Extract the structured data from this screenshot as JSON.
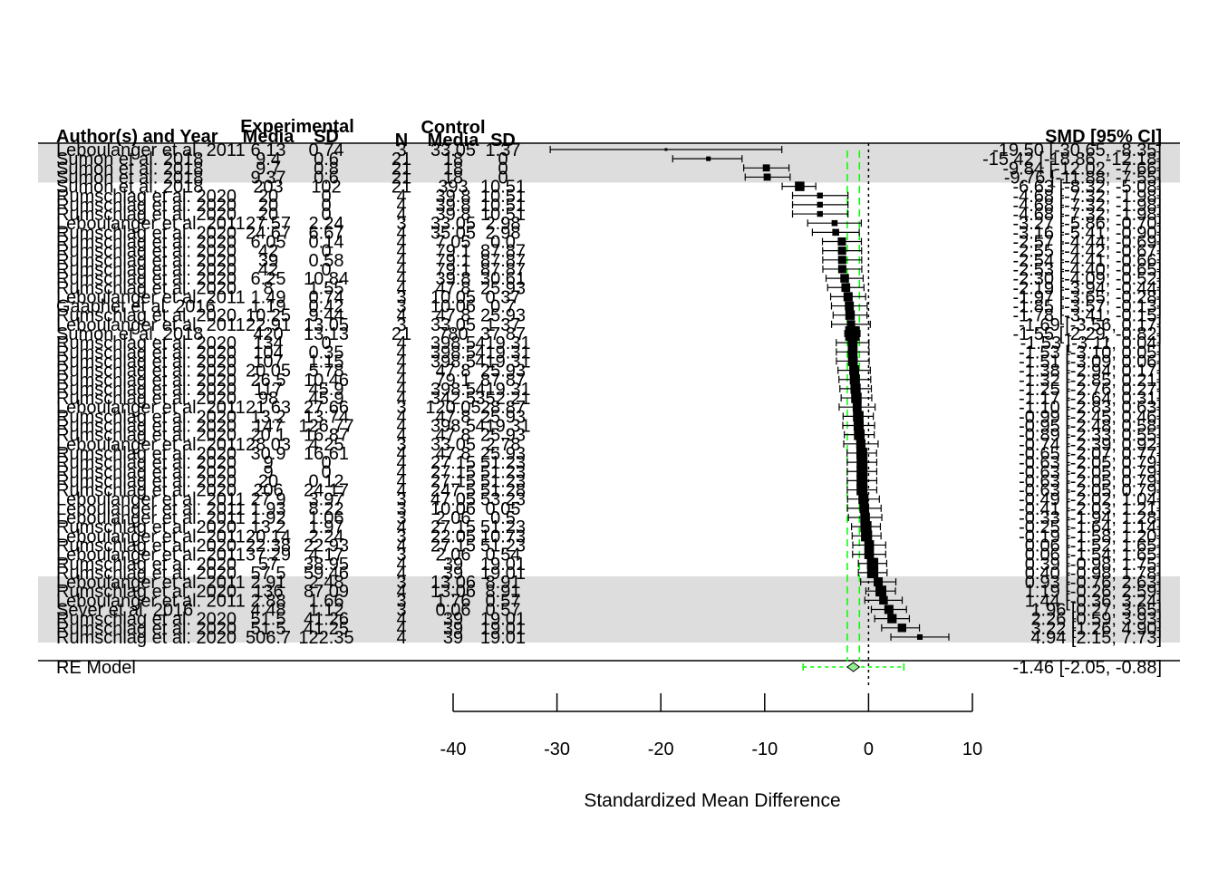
{
  "chart_data": {
    "type": "forest",
    "xlabel": "Standardized Mean Difference",
    "xlim": [
      -40,
      10
    ],
    "x_ticks": [
      -40,
      -30,
      -20,
      -10,
      0,
      10
    ],
    "x_tick_labels": [
      "-40",
      "-30",
      "-20",
      "-10",
      "0",
      "10"
    ],
    "headers": {
      "study": "Author(s) and Year",
      "group_experimental": "Experimental",
      "group_control": "Control",
      "exp_mean": "Media",
      "exp_sd": "SD",
      "n": "N",
      "ctrl_mean": "Media",
      "ctrl_sd": "SD",
      "effect": "SMD [95% CI]"
    },
    "studies": [
      {
        "label": "Leboulanger et al. 2011",
        "exp_mean": "6.13",
        "exp_sd": "0.74",
        "n": "3",
        "ctrl_mean": "33.05",
        "ctrl_sd": "1.37",
        "smd": -19.5,
        "ci_lower": -30.65,
        "ci_upper": -8.35,
        "effect_text": "-19.50 [-30.65,  -8.35]"
      },
      {
        "label": "Sumon et al. 2018",
        "exp_mean": "9.4",
        "exp_sd": "0.6",
        "n": "21",
        "ctrl_mean": "18",
        "ctrl_sd": "0",
        "smd": -15.42,
        "ci_lower": -18.86,
        "ci_upper": -12.18,
        "effect_text": "-15.42 [-18.86, -12.18]"
      },
      {
        "label": "Sumon et al. 2018",
        "exp_mean": "9.7",
        "exp_sd": "0.8",
        "n": "21",
        "ctrl_mean": "18",
        "ctrl_sd": "0",
        "smd": -9.84,
        "ci_lower": -12.02,
        "ci_upper": -7.66,
        "effect_text": "-9.84 [-12.02,  -7.66]"
      },
      {
        "label": "Sumon et al. 2018",
        "exp_mean": "9.37",
        "exp_sd": "0.6",
        "n": "21",
        "ctrl_mean": "18",
        "ctrl_sd": "0",
        "smd": -9.76,
        "ci_lower": -11.88,
        "ci_upper": -7.55,
        "effect_text": "-9.76 [-11.88,  -7.55]"
      },
      {
        "label": "Sumon et al. 2018",
        "exp_mean": "203",
        "exp_sd": "102",
        "n": "21",
        "ctrl_mean": "393",
        "ctrl_sd": "10.51",
        "smd": -6.63,
        "ci_lower": -8.32,
        "ci_upper": -5.08,
        "effect_text": "-6.63 [-8.32,  -5.08]"
      },
      {
        "label": "Rumschlag et al. 2020",
        "exp_mean": "20",
        "exp_sd": "0",
        "n": "4",
        "ctrl_mean": "39.8",
        "ctrl_sd": "10.51",
        "smd": -4.68,
        "ci_lower": -7.32,
        "ci_upper": -1.98,
        "effect_text": "-4.68 [-7.32,  -1.98]"
      },
      {
        "label": "Rumschlag et al. 2020",
        "exp_mean": "20",
        "exp_sd": "0",
        "n": "4",
        "ctrl_mean": "39.8",
        "ctrl_sd": "10.51",
        "smd": -4.68,
        "ci_lower": -7.32,
        "ci_upper": -1.98,
        "effect_text": "-4.68 [-7.32,  -1.98]"
      },
      {
        "label": "Rumschlag et al. 2020",
        "exp_mean": "20",
        "exp_sd": "0",
        "n": "4",
        "ctrl_mean": "39.8",
        "ctrl_sd": "10.51",
        "smd": -4.68,
        "ci_lower": -7.32,
        "ci_upper": -1.98,
        "effect_text": "-4.68 [-7.32,  -1.98]"
      },
      {
        "label": "Leboulanger et al. 2011",
        "exp_mean": "27.57",
        "exp_sd": "2.24",
        "n": "3",
        "ctrl_mean": "33.05",
        "ctrl_sd": "2.98",
        "smd": -3.27,
        "ci_lower": -5.86,
        "ci_upper": -0.7,
        "effect_text": "-3.27 [-5.86,  -0.70]"
      },
      {
        "label": "Rumschlag et al. 2020",
        "exp_mean": "24.67",
        "exp_sd": "6.67",
        "n": "4",
        "ctrl_mean": "35.05",
        "ctrl_sd": "2.98",
        "smd": -3.16,
        "ci_lower": -5.41,
        "ci_upper": -0.9,
        "effect_text": "-3.16 [-5.41,  -0.90]"
      },
      {
        "label": "Rumschlag et al. 2020",
        "exp_mean": "6.05",
        "exp_sd": "0.14",
        "n": "4",
        "ctrl_mean": "7.05",
        "ctrl_sd": "0.0",
        "smd": -2.57,
        "ci_lower": -4.44,
        "ci_upper": -0.69,
        "effect_text": "-2.57 [-4.44,  -0.69]"
      },
      {
        "label": "Rumschlag et al. 2020",
        "exp_mean": "42",
        "exp_sd": "0",
        "n": "4",
        "ctrl_mean": "79.1",
        "ctrl_sd": "87.87",
        "smd": -2.55,
        "ci_lower": -4.42,
        "ci_upper": -0.67,
        "effect_text": "-2.55 [-4.42,  -0.67]"
      },
      {
        "label": "Rumschlag et al. 2020",
        "exp_mean": "39",
        "exp_sd": "0.58",
        "n": "4",
        "ctrl_mean": "79.1",
        "ctrl_sd": "87.87",
        "smd": -2.54,
        "ci_lower": -4.41,
        "ci_upper": -0.66,
        "effect_text": "-2.54 [-4.41,  -0.66]"
      },
      {
        "label": "Rumschlag et al. 2020",
        "exp_mean": "42",
        "exp_sd": "0",
        "n": "4",
        "ctrl_mean": "79.1",
        "ctrl_sd": "87.87",
        "smd": -2.53,
        "ci_lower": -4.4,
        "ci_upper": -0.65,
        "effect_text": "-2.53 [-4.40,  -0.65]"
      },
      {
        "label": "Rumschlag et al. 2020",
        "exp_mean": "6.25",
        "exp_sd": "10.84",
        "n": "4",
        "ctrl_mean": "39.8",
        "ctrl_sd": "30.61",
        "smd": -2.3,
        "ci_lower": -4.09,
        "ci_upper": -0.52,
        "effect_text": "-2.30 [-4.09,  -0.52]"
      },
      {
        "label": "Rumschlag et al. 2020",
        "exp_mean": "8",
        "exp_sd": "1.55",
        "n": "4",
        "ctrl_mean": "47.8",
        "ctrl_sd": "25.93",
        "smd": -2.19,
        "ci_lower": -3.94,
        "ci_upper": -0.44,
        "effect_text": "-2.19 [-3.94,  -0.44]"
      },
      {
        "label": "Leboulanger et al. 2011",
        "exp_mean": "1.49",
        "exp_sd": "0.74",
        "n": "3",
        "ctrl_mean": "10.05",
        "ctrl_sd": "0.37",
        "smd": -1.97,
        "ci_lower": -3.65,
        "ci_upper": -0.28,
        "effect_text": "-1.97 [-3.65,  -0.28]"
      },
      {
        "label": "Gaaphet et al. 2016",
        "exp_mean": "1.19",
        "exp_sd": "0.42",
        "n": "3",
        "ctrl_mean": "10.06",
        "ctrl_sd": "0.7",
        "smd": -1.85,
        "ci_lower": -3.57,
        "ci_upper": -0.13,
        "effect_text": "-1.85 [-3.57,  -0.13]"
      },
      {
        "label": "Rumschlag et al. 2020",
        "exp_mean": "10.25",
        "exp_sd": "9.44",
        "n": "4",
        "ctrl_mean": "47.8",
        "ctrl_sd": "25.93",
        "smd": -1.78,
        "ci_lower": -3.41,
        "ci_upper": -0.15,
        "effect_text": "-1.78 [-3.41,  -0.15]"
      },
      {
        "label": "Leboulanger et al. 2011",
        "exp_mean": "22.91",
        "exp_sd": "13.05",
        "n": "3",
        "ctrl_mean": "33.05",
        "ctrl_sd": "1.37",
        "smd": -1.69,
        "ci_lower": -3.56,
        "ci_upper": 0.17,
        "effect_text": "-1.69 [-3.56,  0.17]"
      },
      {
        "label": "Sumon et al. 2018",
        "exp_mean": "420",
        "exp_sd": "13.13",
        "n": "21",
        "ctrl_mean": "780",
        "ctrl_sd": "37.87",
        "smd": -1.55,
        "ci_lower": -2.29,
        "ci_upper": -0.82,
        "effect_text": "-1.55 [-2.29,  -0.82]"
      },
      {
        "label": "Rumschlag et al. 2020",
        "exp_mean": "134",
        "exp_sd": "0",
        "n": "4",
        "ctrl_mean": "398.5",
        "ctrl_sd": "419.31",
        "smd": -1.53,
        "ci_lower": -3.11,
        "ci_upper": 0.04,
        "effect_text": "-1.53 [-3.11,  0.04]"
      },
      {
        "label": "Rumschlag et al. 2020",
        "exp_mean": "104",
        "exp_sd": "0.35",
        "n": "4",
        "ctrl_mean": "398.5",
        "ctrl_sd": "419.31",
        "smd": -1.53,
        "ci_lower": -3.1,
        "ci_upper": 0.05,
        "effect_text": "-1.53 [-3.10,  0.05]"
      },
      {
        "label": "Rumschlag et al. 2020",
        "exp_mean": "107",
        "exp_sd": "1.15",
        "n": "4",
        "ctrl_mean": "398.5",
        "ctrl_sd": "419.31",
        "smd": -1.51,
        "ci_lower": -3.09,
        "ci_upper": 0.06,
        "effect_text": "-1.51 [-3.09,  0.06]"
      },
      {
        "label": "Rumschlag et al. 2020",
        "exp_mean": "20.05",
        "exp_sd": "5.78",
        "n": "4",
        "ctrl_mean": "47.8",
        "ctrl_sd": "25.93",
        "smd": -1.38,
        "ci_lower": -2.94,
        "ci_upper": 0.17,
        "effect_text": "-1.38 [-2.94,  0.17]"
      },
      {
        "label": "Rumschlag et al. 2020",
        "exp_mean": "26.5",
        "exp_sd": "10.46",
        "n": "4",
        "ctrl_mean": "79.1",
        "ctrl_sd": "87.87",
        "smd": -1.32,
        "ci_lower": -2.85,
        "ci_upper": 0.21,
        "effect_text": "-1.32 [-2.85,  0.21]"
      },
      {
        "label": "Rumschlag et al. 2020",
        "exp_mean": "117",
        "exp_sd": "45.9",
        "n": "4",
        "ctrl_mean": "398.5",
        "ctrl_sd": "419.31",
        "smd": -1.25,
        "ci_lower": -2.76,
        "ci_upper": 0.27,
        "effect_text": "-1.25 [-2.76,  0.27]"
      },
      {
        "label": "Rumschlag et al. 2020",
        "exp_mean": "98",
        "exp_sd": "45.9",
        "n": "4",
        "ctrl_mean": "342.5",
        "ctrl_sd": "352.21",
        "smd": -1.17,
        "ci_lower": -2.64,
        "ci_upper": 0.31,
        "effect_text": "-1.17 [-2.64,  0.31]"
      },
      {
        "label": "Leboulanger et al. 2011",
        "exp_mean": "21.63",
        "exp_sd": "27.66",
        "n": "3",
        "ctrl_mean": "120.05",
        "ctrl_sd": "28.87",
        "smd": -1.1,
        "ci_lower": -2.83,
        "ci_upper": 0.63,
        "effect_text": "-1.10 [-2.83,  0.63]"
      },
      {
        "label": "Rumschlag et al. 2020",
        "exp_mean": "13.2",
        "exp_sd": "13.74",
        "n": "4",
        "ctrl_mean": "47.8",
        "ctrl_sd": "25.93",
        "smd": -0.99,
        "ci_lower": -2.45,
        "ci_upper": 0.46,
        "effect_text": "-0.99 [-2.45,  0.46]"
      },
      {
        "label": "Rumschlag et al. 2020",
        "exp_mean": "147",
        "exp_sd": "126.77",
        "n": "4",
        "ctrl_mean": "398.5",
        "ctrl_sd": "419.31",
        "smd": -0.95,
        "ci_lower": -2.48,
        "ci_upper": 0.58,
        "effect_text": "-0.95 [-2.48,  0.58]"
      },
      {
        "label": "Rumschlag et al. 2020",
        "exp_mean": "20.1",
        "exp_sd": "16.87",
        "n": "4",
        "ctrl_mean": "47.8",
        "ctrl_sd": "25.93",
        "smd": -0.89,
        "ci_lower": -2.33,
        "ci_upper": 0.55,
        "effect_text": "-0.89 [-2.33,  0.55]"
      },
      {
        "label": "Leboulanger et al. 2011",
        "exp_mean": "28.03",
        "exp_sd": "4.25",
        "n": "3",
        "ctrl_mean": "33.05",
        "ctrl_sd": "2.78",
        "smd": -0.74,
        "ci_lower": -2.39,
        "ci_upper": 0.92,
        "effect_text": "-0.74 [-2.39,  0.92]"
      },
      {
        "label": "Rumschlag et al. 2020",
        "exp_mean": "30.9",
        "exp_sd": "16.61",
        "n": "4",
        "ctrl_mean": "47.8",
        "ctrl_sd": "25.93",
        "smd": -0.65,
        "ci_lower": -2.07,
        "ci_upper": 0.77,
        "effect_text": "-0.65 [-2.07,  0.77]"
      },
      {
        "label": "Rumschlag et al. 2020",
        "exp_mean": "9",
        "exp_sd": "0",
        "n": "4",
        "ctrl_mean": "27.15",
        "ctrl_sd": "51.23",
        "smd": -0.63,
        "ci_lower": -2.05,
        "ci_upper": 0.79,
        "effect_text": "-0.63 [-2.05,  0.79]"
      },
      {
        "label": "Rumschlag et al. 2020",
        "exp_mean": "9",
        "exp_sd": "0",
        "n": "4",
        "ctrl_mean": "27.15",
        "ctrl_sd": "51.23",
        "smd": -0.63,
        "ci_lower": -2.05,
        "ci_upper": 0.79,
        "effect_text": "-0.63 [-2.05,  0.79]"
      },
      {
        "label": "Rumschlag et al. 2020",
        "exp_mean": "20",
        "exp_sd": "0.12",
        "n": "4",
        "ctrl_mean": "27.15",
        "ctrl_sd": "51.23",
        "smd": -0.63,
        "ci_lower": -2.05,
        "ci_upper": 0.79,
        "effect_text": "-0.63 [-2.05,  0.79]"
      },
      {
        "label": "Rumschlag et al. 2020",
        "exp_mean": "206",
        "exp_sd": "24.17",
        "n": "4",
        "ctrl_mean": "247.5",
        "ctrl_sd": "51.28",
        "smd": -0.63,
        "ci_lower": -2.05,
        "ci_upper": 0.79,
        "effect_text": "-0.63 [-2.05,  0.79]"
      },
      {
        "label": "Leboulanger et al. 2011",
        "exp_mean": "27.9",
        "exp_sd": "3.97",
        "n": "3",
        "ctrl_mean": "47.05",
        "ctrl_sd": "53.23",
        "smd": -0.49,
        "ci_lower": -2.02,
        "ci_upper": 1.04,
        "effect_text": "-0.49 [-2.02,  1.04]"
      },
      {
        "label": "Leboulanger et al. 2011",
        "exp_mean": "1.93",
        "exp_sd": "8.22",
        "n": "3",
        "ctrl_mean": "10.06",
        "ctrl_sd": "0.05",
        "smd": -0.41,
        "ci_lower": -2.03,
        "ci_upper": 1.21,
        "effect_text": "-0.41 [-2.03,  1.21]"
      },
      {
        "label": "Leboulanger et al. 2011",
        "exp_mean": "1.92",
        "exp_sd": "1.06",
        "n": "3",
        "ctrl_mean": "2.06",
        "ctrl_sd": "0.5",
        "smd": -0.33,
        "ci_lower": -1.94,
        "ci_upper": 1.28,
        "effect_text": "-0.33 [-1.94,  1.28]"
      },
      {
        "label": "Rumschlag et al. 2020",
        "exp_mean": "13.2",
        "exp_sd": "1.97",
        "n": "4",
        "ctrl_mean": "27.15",
        "ctrl_sd": "51.23",
        "smd": -0.25,
        "ci_lower": -1.64,
        "ci_upper": 1.14,
        "effect_text": "-0.25 [-1.64,  1.14]"
      },
      {
        "label": "Leboulanger et al. 2011",
        "exp_mean": "20.14",
        "exp_sd": "2.24",
        "n": "3",
        "ctrl_mean": "22.05",
        "ctrl_sd": "10.73",
        "smd": -0.19,
        "ci_lower": -1.58,
        "ci_upper": 1.2,
        "effect_text": "-0.19 [-1.58,  1.20]"
      },
      {
        "label": "Rumschlag et al. 2020",
        "exp_mean": "22.38",
        "exp_sd": "22.93",
        "n": "4",
        "ctrl_mean": "27.15",
        "ctrl_sd": "51.23",
        "smd": 0.06,
        "ci_lower": -1.52,
        "ci_upper": 1.65,
        "effect_text": "0.06 [-1.52,  1.65]"
      },
      {
        "label": "Leboulanger et al. 2011",
        "exp_mean": "37.29",
        "exp_sd": "4.17",
        "n": "3",
        "ctrl_mean": "2.06",
        "ctrl_sd": "0.54",
        "smd": 0.06,
        "ci_lower": -1.54,
        "ci_upper": 1.65,
        "effect_text": "0.06 [-1.54,  1.65]"
      },
      {
        "label": "Rumschlag et al. 2020",
        "exp_mean": "57",
        "exp_sd": "38.95",
        "n": "4",
        "ctrl_mean": "39",
        "ctrl_sd": "19.01",
        "smd": 0.39,
        "ci_lower": -0.98,
        "ci_upper": 1.75,
        "effect_text": "0.39 [-0.98,  1.75]"
      },
      {
        "label": "Rumschlag et al. 2020",
        "exp_mean": "57.5",
        "exp_sd": "59.46",
        "n": "4",
        "ctrl_mean": "39",
        "ctrl_sd": "19.01",
        "smd": 0.4,
        "ci_lower": -0.98,
        "ci_upper": 1.78,
        "effect_text": "0.40 [-0.98,  1.78]"
      },
      {
        "label": "Leboulanger et al. 2011",
        "exp_mean": "2.91",
        "exp_sd": "2.48",
        "n": "3",
        "ctrl_mean": "13.06",
        "ctrl_sd": "8.91",
        "smd": 0.93,
        "ci_lower": -0.76,
        "ci_upper": 2.63,
        "effect_text": "0.93 [-0.76,  2.63]"
      },
      {
        "label": "Rumschlag et al. 2020",
        "exp_mean": "136",
        "exp_sd": "87.09",
        "n": "4",
        "ctrl_mean": "13.06",
        "ctrl_sd": "8.91",
        "smd": 1.19,
        "ci_lower": -0.26,
        "ci_upper": 2.59,
        "effect_text": "1.19 [-0.26,  2.59]"
      },
      {
        "label": "Leboulanger et al. 2011",
        "exp_mean": "2.88",
        "exp_sd": "1.66",
        "n": "3",
        "ctrl_mean": "1.76",
        "ctrl_sd": "0.57",
        "smd": 1.44,
        "ci_lower": -0.36,
        "ci_upper": 3.24,
        "effect_text": "1.44 [-0.36,  3.24]"
      },
      {
        "label": "Sever et al. 2016",
        "exp_mean": "4.48",
        "exp_sd": "1.12",
        "n": "3",
        "ctrl_mean": "0.06",
        "ctrl_sd": "0.57",
        "smd": 1.96,
        "ci_lower": 0.27,
        "ci_upper": 3.65,
        "effect_text": "1.96 [0.27,  3.65]"
      },
      {
        "label": "Rumschlag et al. 2020",
        "exp_mean": "51.5",
        "exp_sd": "41.26",
        "n": "4",
        "ctrl_mean": "39",
        "ctrl_sd": "19.01",
        "smd": 2.26,
        "ci_lower": 0.59,
        "ci_upper": 3.93,
        "effect_text": "2.26 [0.59,  3.93]"
      },
      {
        "label": "Rumschlag et al. 2020",
        "exp_mean": "51.5",
        "exp_sd": "41.25",
        "n": "4",
        "ctrl_mean": "39",
        "ctrl_sd": "19.01",
        "smd": 3.22,
        "ci_lower": 1.26,
        "ci_upper": 4.9,
        "effect_text": "3.22 [1.26,  4.90]"
      },
      {
        "label": "Rumschlag et al. 2020",
        "exp_mean": "506.7",
        "exp_sd": "122.35",
        "n": "4",
        "ctrl_mean": "39",
        "ctrl_sd": "19.01",
        "smd": 4.94,
        "ci_lower": 2.15,
        "ci_upper": 7.73,
        "effect_text": "4.94 [2.15,  7.73]"
      }
    ],
    "summary": {
      "label": "RE Model",
      "smd": -1.46,
      "ci_lower": -2.05,
      "ci_upper": -0.88,
      "pi_lower": -6.3,
      "pi_upper": 3.4,
      "effect_text": "-1.46 [-2.05,  -0.88]"
    },
    "shaded_rows": [
      [
        0,
        3
      ],
      [
        47,
        53
      ]
    ],
    "colors": {
      "text": "#000000",
      "band": "#dddddd",
      "marker": "#000000",
      "summary_fill": "#90ee90",
      "summary_ci": "#00ff00",
      "prediction_interval": "#00ff00"
    }
  }
}
